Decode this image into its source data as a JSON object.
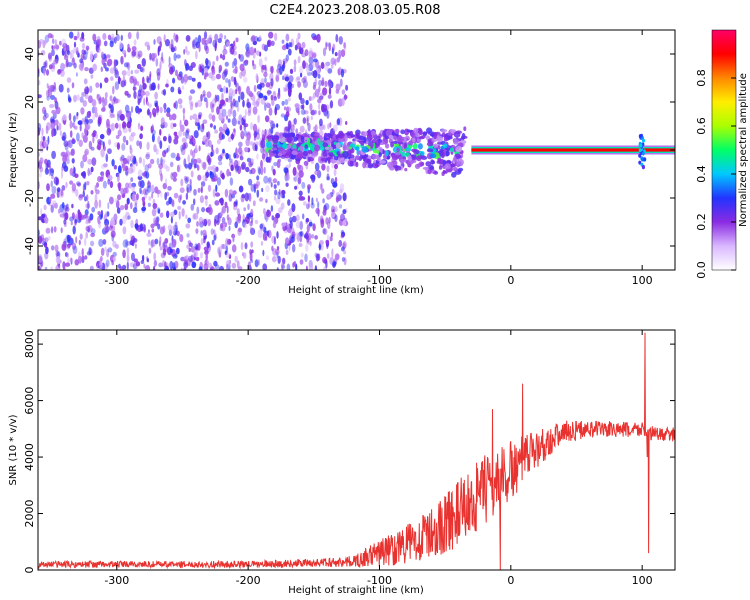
{
  "title": "C2E4.2023.208.03.05.R08",
  "chart_data": [
    {
      "type": "heatmap",
      "xlabel": "Height of straight line (km)",
      "ylabel": "Frequency (Hz)",
      "xlim": [
        -360,
        125
      ],
      "ylim": [
        -50,
        50
      ],
      "xticks": [
        -300,
        -200,
        -100,
        0,
        100
      ],
      "yticks": [
        -40,
        -20,
        0,
        20,
        40
      ],
      "colorbar": {
        "label": "Normalized spectral amplitude",
        "range": [
          0.0,
          1.0
        ],
        "ticks": [
          "0.0",
          "0.2",
          "0.4",
          "0.6",
          "0.8"
        ],
        "colors": [
          "#ffffff",
          "#d9b8ff",
          "#8a2be2",
          "#2233ff",
          "#00c8ff",
          "#00ff66",
          "#aaff00",
          "#ffee00",
          "#ff8800",
          "#ff0000",
          "#ff0066"
        ]
      },
      "regions": [
        {
          "desc": "scattered noise",
          "x_range": [
            -360,
            -125
          ],
          "freq_range": [
            -50,
            48
          ],
          "amplitude": 0.1
        },
        {
          "desc": "signal band",
          "x_range": [
            -185,
            -35
          ],
          "freq_range": [
            -15,
            12
          ],
          "amplitude": 0.3
        },
        {
          "desc": "carrier line",
          "x_range": [
            -30,
            125
          ],
          "freq_center": 0,
          "amplitude": 0.9
        },
        {
          "desc": "burst",
          "x_center": 100,
          "freq_range": [
            -8,
            6
          ],
          "amplitude": 0.4
        }
      ],
      "grid": false,
      "legend": "colorbar-right"
    },
    {
      "type": "line",
      "xlabel": "Height of straight line (km)",
      "ylabel": "SNR (10 * v/v)",
      "xlim": [
        -360,
        125
      ],
      "ylim": [
        0,
        8500
      ],
      "xticks": [
        -300,
        -200,
        -100,
        0,
        100
      ],
      "yticks": [
        0,
        2000,
        4000,
        6000,
        8000
      ],
      "color": "#e8322f",
      "envelope": [
        {
          "x": -360,
          "y": 200,
          "spread": 120
        },
        {
          "x": -200,
          "y": 200,
          "spread": 120
        },
        {
          "x": -150,
          "y": 250,
          "spread": 150
        },
        {
          "x": -120,
          "y": 300,
          "spread": 200
        },
        {
          "x": -100,
          "y": 600,
          "spread": 500
        },
        {
          "x": -80,
          "y": 900,
          "spread": 700
        },
        {
          "x": -60,
          "y": 1300,
          "spread": 900
        },
        {
          "x": -40,
          "y": 2000,
          "spread": 1200
        },
        {
          "x": -20,
          "y": 2800,
          "spread": 1300
        },
        {
          "x": 0,
          "y": 3500,
          "spread": 1100
        },
        {
          "x": 20,
          "y": 4300,
          "spread": 700
        },
        {
          "x": 40,
          "y": 4900,
          "spread": 400
        },
        {
          "x": 60,
          "y": 5000,
          "spread": 300
        },
        {
          "x": 90,
          "y": 4950,
          "spread": 300
        },
        {
          "x": 100,
          "y": 5000,
          "spread": 300
        },
        {
          "x": 110,
          "y": 4800,
          "spread": 250
        },
        {
          "x": 125,
          "y": 4800,
          "spread": 250
        }
      ],
      "spikes": [
        {
          "x": -14,
          "y": 5700
        },
        {
          "x": -8,
          "y": 0
        },
        {
          "x": 9,
          "y": 6600
        },
        {
          "x": 102,
          "y": 8400
        },
        {
          "x": 104,
          "y": 4000
        },
        {
          "x": 105,
          "y": 600
        }
      ],
      "grid": false
    }
  ]
}
